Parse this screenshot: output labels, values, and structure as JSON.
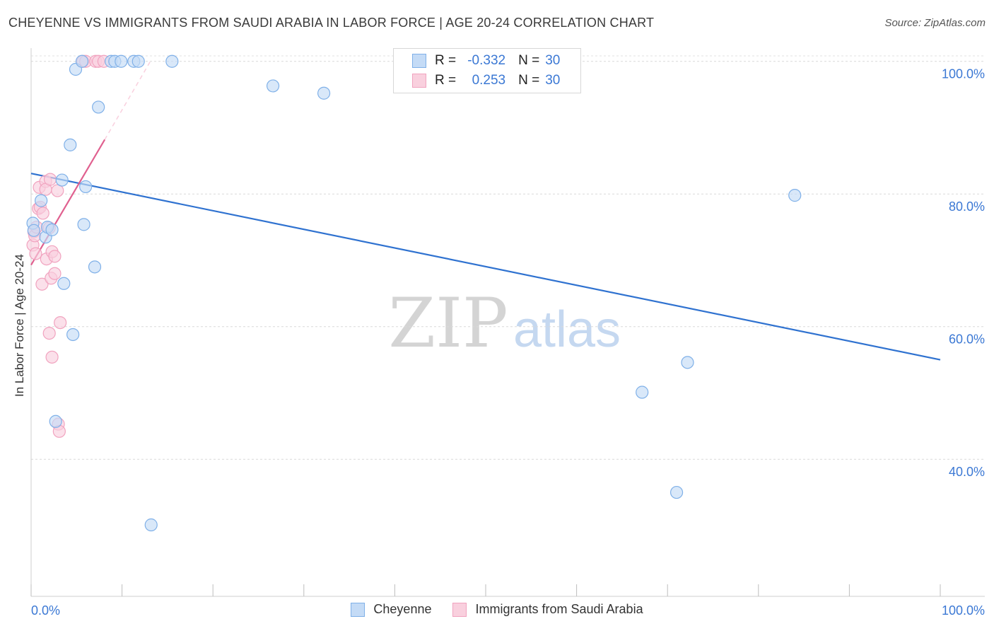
{
  "title": "CHEYENNE VS IMMIGRANTS FROM SAUDI ARABIA IN LABOR FORCE | AGE 20-24 CORRELATION CHART",
  "source": "Source: ZipAtlas.com",
  "watermark": {
    "zip": "ZIP",
    "atlas": "atlas"
  },
  "legend_top": {
    "rows": [
      {
        "r_label": "R =",
        "r_value": "-0.332",
        "n_label": "N =",
        "n_value": "30"
      },
      {
        "r_label": "R =",
        "r_value": "0.253",
        "n_label": "N =",
        "n_value": "30"
      }
    ]
  },
  "chart_data": {
    "type": "scatter",
    "title": "CHEYENNE VS IMMIGRANTS FROM SAUDI ARABIA IN LABOR FORCE | AGE 20-24 CORRELATION CHART",
    "xlabel": "",
    "ylabel": "In Labor Force | Age 20-24",
    "xlim": [
      0,
      100
    ],
    "ylim": [
      20.5,
      102
    ],
    "x_tick_labels": [
      "0.0%",
      "100.0%"
    ],
    "y_ticks": [
      100,
      80,
      60,
      40
    ],
    "y_tick_labels": [
      "100.0%",
      "80.0%",
      "60.0%",
      "40.0%"
    ],
    "grid": true,
    "legend_position": "bottom",
    "series": [
      {
        "name": "Cheyenne",
        "color": "#7fb0e8",
        "fill": "#c4dbf6",
        "line_color": "#2f72d0",
        "trend": {
          "x": [
            0,
            100
          ],
          "y": [
            83.1,
            55.0
          ]
        },
        "points": [
          {
            "x": 0.2,
            "y": 75.6
          },
          {
            "x": 0.3,
            "y": 74.5
          },
          {
            "x": 1.1,
            "y": 79.0
          },
          {
            "x": 1.6,
            "y": 73.5
          },
          {
            "x": 1.8,
            "y": 75.0
          },
          {
            "x": 2.3,
            "y": 74.6
          },
          {
            "x": 2.7,
            "y": 45.7
          },
          {
            "x": 3.4,
            "y": 82.1
          },
          {
            "x": 3.6,
            "y": 66.5
          },
          {
            "x": 4.3,
            "y": 87.4
          },
          {
            "x": 4.6,
            "y": 58.8
          },
          {
            "x": 4.9,
            "y": 98.8
          },
          {
            "x": 5.6,
            "y": 100
          },
          {
            "x": 5.8,
            "y": 75.4
          },
          {
            "x": 6.0,
            "y": 81.1
          },
          {
            "x": 7.0,
            "y": 69.0
          },
          {
            "x": 7.4,
            "y": 93.1
          },
          {
            "x": 8.8,
            "y": 100
          },
          {
            "x": 9.2,
            "y": 100
          },
          {
            "x": 9.9,
            "y": 100
          },
          {
            "x": 11.3,
            "y": 100
          },
          {
            "x": 11.8,
            "y": 100
          },
          {
            "x": 13.2,
            "y": 30.1
          },
          {
            "x": 15.5,
            "y": 100
          },
          {
            "x": 26.6,
            "y": 96.3
          },
          {
            "x": 32.2,
            "y": 95.2
          },
          {
            "x": 67.2,
            "y": 50.1
          },
          {
            "x": 71.0,
            "y": 35.0
          },
          {
            "x": 72.2,
            "y": 54.6
          },
          {
            "x": 84.0,
            "y": 79.8
          }
        ]
      },
      {
        "name": "Immigrants from Saudi Arabia",
        "color": "#f1a3bf",
        "fill": "#f9d0de",
        "line_color": "#e0608f",
        "trend": {
          "x": [
            0,
            8.1
          ],
          "y": [
            69.3,
            88.2
          ]
        },
        "trend_dashed": {
          "x": [
            8.1,
            13.2
          ],
          "y": [
            88.2,
            100.2
          ]
        },
        "points": [
          {
            "x": 0.2,
            "y": 72.3
          },
          {
            "x": 0.3,
            "y": 74.3
          },
          {
            "x": 0.4,
            "y": 73.7
          },
          {
            "x": 0.5,
            "y": 71.0
          },
          {
            "x": 0.6,
            "y": 75.0
          },
          {
            "x": 0.8,
            "y": 77.8
          },
          {
            "x": 0.9,
            "y": 81.0
          },
          {
            "x": 1.0,
            "y": 78.0
          },
          {
            "x": 1.2,
            "y": 66.4
          },
          {
            "x": 1.3,
            "y": 77.1
          },
          {
            "x": 1.6,
            "y": 81.9
          },
          {
            "x": 1.6,
            "y": 80.7
          },
          {
            "x": 1.7,
            "y": 70.2
          },
          {
            "x": 2.0,
            "y": 59.0
          },
          {
            "x": 2.0,
            "y": 74.9
          },
          {
            "x": 2.1,
            "y": 82.2
          },
          {
            "x": 2.2,
            "y": 67.3
          },
          {
            "x": 2.3,
            "y": 55.4
          },
          {
            "x": 2.3,
            "y": 71.3
          },
          {
            "x": 2.6,
            "y": 70.6
          },
          {
            "x": 2.6,
            "y": 68.0
          },
          {
            "x": 2.9,
            "y": 80.5
          },
          {
            "x": 3.0,
            "y": 45.3
          },
          {
            "x": 3.1,
            "y": 44.2
          },
          {
            "x": 3.2,
            "y": 60.6
          },
          {
            "x": 5.7,
            "y": 100
          },
          {
            "x": 6.0,
            "y": 100
          },
          {
            "x": 7.1,
            "y": 100
          },
          {
            "x": 7.4,
            "y": 100
          },
          {
            "x": 8.0,
            "y": 100
          }
        ]
      }
    ]
  }
}
